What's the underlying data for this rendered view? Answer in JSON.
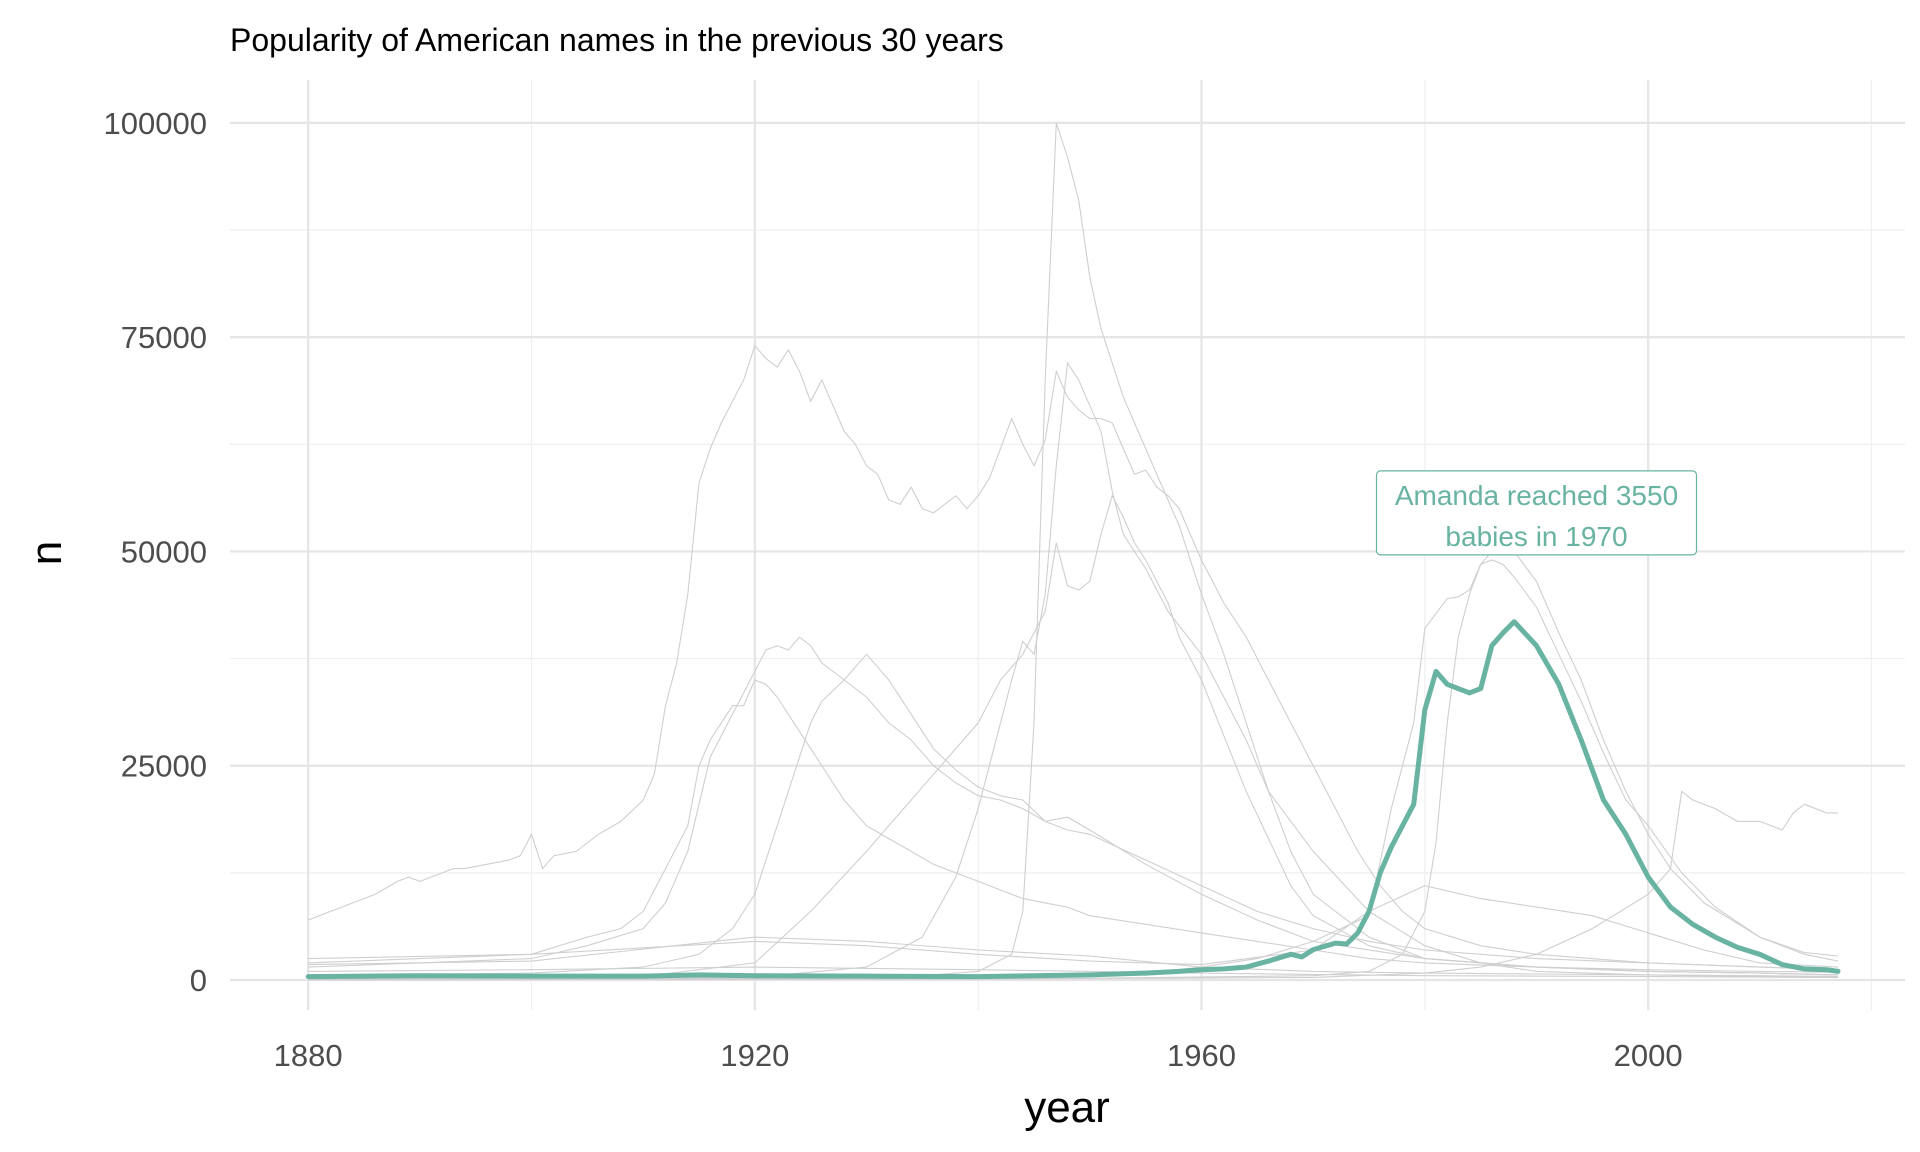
{
  "chart_data": {
    "type": "line",
    "title": "Popularity of American names in the previous 30 years",
    "xlabel": "year",
    "ylabel": "n",
    "xlim": [
      1873,
      2023
    ],
    "ylim": [
      -3500,
      105000
    ],
    "x_ticks": [
      1880,
      1920,
      1960,
      2000
    ],
    "x_tick_labels": [
      "1880",
      "1920",
      "1960",
      "2000"
    ],
    "y_ticks": [
      0,
      25000,
      50000,
      75000,
      100000
    ],
    "y_tick_labels": [
      "0",
      "25000",
      "50000",
      "75000",
      "100000"
    ],
    "grid": true,
    "highlight_color": "#69b3a2",
    "background_color": "#cfcfcf",
    "annotation": {
      "line1": "Amanda reached 3550",
      "line2": "babies in 1970",
      "x": 1990,
      "y": 54500
    },
    "series": [
      {
        "name": "Amanda",
        "highlight": true,
        "x": [
          1880,
          1890,
          1900,
          1910,
          1915,
          1920,
          1930,
          1940,
          1950,
          1955,
          1958,
          1960,
          1962,
          1964,
          1966,
          1968,
          1969,
          1970,
          1972,
          1973,
          1974,
          1975,
          1976,
          1977,
          1978,
          1979,
          1980,
          1981,
          1982,
          1983,
          1984,
          1985,
          1986,
          1987,
          1988,
          1990,
          1992,
          1994,
          1996,
          1998,
          2000,
          2002,
          2004,
          2006,
          2008,
          2010,
          2012,
          2014,
          2016,
          2017
        ],
        "y": [
          400,
          500,
          450,
          450,
          600,
          500,
          450,
          400,
          600,
          800,
          1000,
          1200,
          1300,
          1500,
          2200,
          3000,
          2700,
          3550,
          4300,
          4200,
          5500,
          8000,
          12500,
          15500,
          18000,
          20500,
          31500,
          36000,
          34500,
          34000,
          33500,
          34000,
          39000,
          40500,
          41800,
          39000,
          34500,
          28000,
          21000,
          17000,
          12000,
          8500,
          6500,
          5000,
          3800,
          3000,
          1800,
          1300,
          1200,
          1000
        ]
      },
      {
        "name": "bg1",
        "x": [
          1880,
          1881,
          1882,
          1884,
          1885,
          1886,
          1888,
          1889,
          1890,
          1892,
          1893,
          1894,
          1896,
          1898,
          1899,
          1900,
          1901,
          1902,
          1904,
          1906,
          1908,
          1910,
          1911,
          1912,
          1913,
          1914,
          1915,
          1916,
          1917,
          1918,
          1919,
          1920,
          1921,
          1922,
          1923,
          1924,
          1925,
          1926,
          1927,
          1928,
          1929,
          1930,
          1931,
          1932,
          1933,
          1934,
          1935,
          1936,
          1937,
          1938,
          1939,
          1940,
          1941,
          1942,
          1943,
          1944,
          1945,
          1946,
          1947,
          1948,
          1949,
          1950,
          1951,
          1952,
          1953,
          1954,
          1955,
          1956,
          1957,
          1958,
          1959,
          1960,
          1962,
          1964,
          1966,
          1968,
          1970,
          1972,
          1974,
          1976,
          1978,
          1980,
          1985,
          1990,
          2000,
          2010,
          2017
        ],
        "y": [
          7000,
          7500,
          8000,
          9000,
          9500,
          10000,
          11500,
          12000,
          11500,
          12500,
          13000,
          13000,
          13500,
          14000,
          14500,
          17000,
          13000,
          14500,
          15000,
          17000,
          18500,
          21000,
          24000,
          32000,
          37000,
          45000,
          58000,
          62000,
          65000,
          67500,
          70000,
          74000,
          72500,
          71500,
          73500,
          71000,
          67500,
          70000,
          67000,
          64000,
          62500,
          60000,
          59000,
          56000,
          55500,
          57500,
          55000,
          54500,
          55500,
          56500,
          55000,
          56500,
          58500,
          62000,
          65500,
          62500,
          60000,
          63000,
          71000,
          68000,
          66500,
          65500,
          65500,
          65000,
          62000,
          59000,
          59500,
          57500,
          56500,
          55000,
          52000,
          49000,
          44000,
          40000,
          35000,
          30000,
          25000,
          20000,
          15000,
          11000,
          8000,
          6000,
          4000,
          3000,
          2000,
          1500,
          1200
        ]
      },
      {
        "name": "bg2",
        "x": [
          1880,
          1890,
          1900,
          1905,
          1908,
          1910,
          1912,
          1914,
          1915,
          1916,
          1917,
          1918,
          1919,
          1920,
          1921,
          1922,
          1923,
          1924,
          1925,
          1926,
          1927,
          1928,
          1929,
          1930,
          1932,
          1934,
          1936,
          1938,
          1940,
          1942,
          1944,
          1946,
          1948,
          1950,
          1955,
          1960,
          1965,
          1970,
          1975,
          1980,
          1990,
          2000,
          2010,
          2017
        ],
        "y": [
          2000,
          2500,
          3000,
          5000,
          6000,
          8000,
          13000,
          18000,
          25000,
          28000,
          30000,
          32000,
          32000,
          35000,
          34500,
          33000,
          31000,
          29000,
          27000,
          25000,
          23000,
          21000,
          19500,
          18000,
          16500,
          15000,
          13500,
          12500,
          11500,
          10500,
          9500,
          9000,
          8500,
          7500,
          6500,
          5500,
          4500,
          3500,
          2500,
          2000,
          1500,
          1200,
          1000,
          900
        ]
      },
      {
        "name": "bg3",
        "x": [
          1880,
          1890,
          1900,
          1905,
          1910,
          1912,
          1914,
          1916,
          1918,
          1920,
          1921,
          1922,
          1923,
          1924,
          1925,
          1926,
          1928,
          1930,
          1932,
          1934,
          1936,
          1938,
          1940,
          1942,
          1944,
          1946,
          1948,
          1950,
          1955,
          1960,
          1965,
          1970,
          1975,
          1980,
          1990,
          2000,
          2010,
          2017
        ],
        "y": [
          1500,
          2000,
          2500,
          4000,
          6000,
          9000,
          15000,
          26000,
          31000,
          36000,
          38500,
          39000,
          38500,
          40000,
          39000,
          37000,
          35000,
          33000,
          30000,
          28000,
          25000,
          23000,
          21500,
          21000,
          20000,
          18500,
          17500,
          17000,
          14000,
          11000,
          8000,
          6000,
          4500,
          3500,
          2500,
          2000,
          1500,
          1200
        ]
      },
      {
        "name": "bg4",
        "x": [
          1880,
          1900,
          1910,
          1915,
          1918,
          1920,
          1922,
          1924,
          1925,
          1926,
          1928,
          1929,
          1930,
          1932,
          1934,
          1936,
          1938,
          1940,
          1942,
          1944,
          1946,
          1948,
          1950,
          1955,
          1960,
          1965,
          1970,
          1980,
          1990,
          2000,
          2010,
          2017
        ],
        "y": [
          500,
          800,
          1500,
          3000,
          6000,
          10000,
          18000,
          26000,
          30000,
          32500,
          35000,
          36500,
          38000,
          35000,
          31000,
          27000,
          24500,
          22500,
          21500,
          21000,
          18500,
          19000,
          17500,
          13500,
          10000,
          7000,
          4500,
          2500,
          1500,
          1000,
          800,
          600
        ]
      },
      {
        "name": "bg5",
        "x": [
          1880,
          1900,
          1910,
          1920,
          1925,
          1930,
          1932,
          1934,
          1936,
          1938,
          1940,
          1942,
          1944,
          1946,
          1947,
          1948,
          1949,
          1950,
          1951,
          1952,
          1953,
          1954,
          1955,
          1956,
          1957,
          1958,
          1960,
          1962,
          1964,
          1966,
          1968,
          1970,
          1975,
          1980,
          1990,
          2000,
          2010,
          2017
        ],
        "y": [
          200,
          300,
          400,
          2000,
          8000,
          15000,
          18000,
          21000,
          24000,
          27000,
          30000,
          35000,
          38000,
          43000,
          51000,
          46000,
          45500,
          46500,
          52000,
          56500,
          54000,
          51000,
          49000,
          46500,
          44000,
          40000,
          35000,
          28500,
          22000,
          16500,
          11000,
          7500,
          4000,
          2500,
          1500,
          1000,
          800,
          600
        ]
      },
      {
        "name": "bg6",
        "x": [
          1880,
          1900,
          1920,
          1930,
          1935,
          1938,
          1940,
          1942,
          1943,
          1944,
          1945,
          1946,
          1947,
          1948,
          1949,
          1950,
          1951,
          1952,
          1953,
          1955,
          1957,
          1960,
          1962,
          1964,
          1966,
          1968,
          1970,
          1975,
          1980,
          1990,
          2000,
          2010,
          2017
        ],
        "y": [
          100,
          150,
          300,
          1500,
          5000,
          12000,
          20000,
          30000,
          35000,
          39500,
          38000,
          45000,
          60000,
          72000,
          70000,
          67000,
          64000,
          57000,
          52000,
          48000,
          43000,
          38000,
          33000,
          28000,
          22000,
          15000,
          10000,
          5000,
          2500,
          1500,
          1000,
          800,
          600
        ]
      },
      {
        "name": "bg7",
        "x": [
          1880,
          1900,
          1920,
          1935,
          1940,
          1943,
          1944,
          1945,
          1946,
          1947,
          1948,
          1949,
          1950,
          1951,
          1952,
          1953,
          1954,
          1955,
          1956,
          1957,
          1958,
          1960,
          1962,
          1964,
          1966,
          1970,
          1975,
          1980,
          1985,
          1990,
          2000,
          2010,
          2017
        ],
        "y": [
          0,
          100,
          200,
          500,
          1000,
          3000,
          8000,
          30000,
          70000,
          100000,
          96000,
          91000,
          82000,
          76000,
          72000,
          68000,
          65000,
          62000,
          59000,
          56000,
          53000,
          45000,
          38000,
          30000,
          22000,
          15000,
          8000,
          4000,
          2000,
          1000,
          600,
          400,
          300
        ]
      },
      {
        "name": "bg8",
        "x": [
          1880,
          1920,
          1940,
          1950,
          1955,
          1960,
          1965,
          1970,
          1975,
          1977,
          1979,
          1980,
          1982,
          1983,
          1984,
          1985,
          1986,
          1987,
          1988,
          1990,
          1992,
          1994,
          1996,
          1998,
          2000,
          2003,
          2006,
          2010,
          2014,
          2017
        ],
        "y": [
          100,
          200,
          300,
          600,
          800,
          1500,
          2500,
          4500,
          7500,
          20000,
          30000,
          41000,
          44500,
          44700,
          45500,
          48500,
          49000,
          48500,
          47000,
          43500,
          38000,
          32500,
          26500,
          21000,
          18000,
          12500,
          8500,
          5000,
          3000,
          2200
        ]
      },
      {
        "name": "bg9",
        "x": [
          1880,
          1920,
          1950,
          1970,
          1975,
          1978,
          1980,
          1981,
          1982,
          1983,
          1984,
          1985,
          1986,
          1987,
          1988,
          1990,
          1992,
          1994,
          1996,
          1998,
          2000,
          2002,
          2005,
          2010,
          2014,
          2017
        ],
        "y": [
          0,
          100,
          200,
          500,
          1000,
          3000,
          8000,
          16000,
          30000,
          40000,
          45000,
          48500,
          50000,
          51000,
          50000,
          46500,
          40500,
          35000,
          28000,
          22000,
          17000,
          13000,
          9000,
          5000,
          3200,
          2800
        ]
      },
      {
        "name": "bg10",
        "x": [
          1880,
          1940,
          1970,
          1980,
          1985,
          1990,
          1995,
          2000,
          2002,
          2003,
          2004,
          2006,
          2008,
          2010,
          2012,
          2013,
          2014,
          2016,
          2017
        ],
        "y": [
          0,
          100,
          300,
          800,
          1500,
          3000,
          6000,
          10000,
          13000,
          22000,
          21000,
          20000,
          18500,
          18500,
          17500,
          19500,
          20500,
          19500,
          19500
        ]
      },
      {
        "name": "bg11",
        "x": [
          1880,
          1900,
          1920,
          1930,
          1940,
          1950,
          1960,
          1970,
          1975,
          1980,
          1985,
          1990,
          1995,
          2000,
          2005,
          2010,
          2017
        ],
        "y": [
          2500,
          3000,
          4500,
          4000,
          3000,
          2200,
          1800,
          3500,
          8000,
          11000,
          9500,
          8500,
          7500,
          5500,
          3500,
          2000,
          1500
        ]
      },
      {
        "name": "bg12",
        "x": [
          1880,
          1900,
          1920,
          1930,
          1940,
          1950,
          1960,
          1970,
          1980,
          1990,
          2000,
          2010,
          2017
        ],
        "y": [
          1800,
          2200,
          5000,
          4500,
          3500,
          2800,
          1500,
          1000,
          800,
          700,
          600,
          500,
          400
        ]
      },
      {
        "name": "bg13",
        "x": [
          1880,
          1900,
          1920,
          1940,
          1960,
          1980,
          2000,
          2017
        ],
        "y": [
          1000,
          1200,
          1500,
          1200,
          800,
          500,
          400,
          300
        ]
      }
    ]
  }
}
